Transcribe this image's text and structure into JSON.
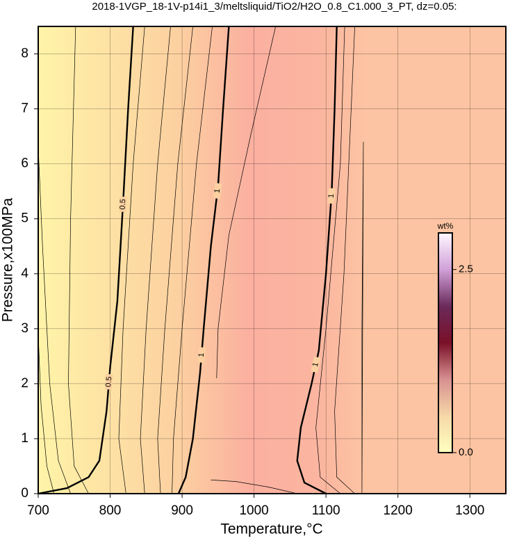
{
  "chart_data": {
    "type": "contour",
    "title": "2018-1VGP_18-1V-p14i1_3/meltsliquid/TiO2/H2O_0.8_C1.000_3_PT, dz=0.05:",
    "x_label": "Temperature,°C",
    "y_label": "Pressure,x100MPa",
    "xlim": [
      700,
      1350
    ],
    "ylim": [
      0,
      8.5
    ],
    "xticks": [
      700,
      800,
      900,
      1000,
      1100,
      1200,
      1300
    ],
    "yticks": [
      0,
      1,
      2,
      3,
      4,
      5,
      6,
      7,
      8
    ],
    "grid": true,
    "contours": [
      {
        "level": 0.2,
        "bold": false,
        "x": [
          722,
          712,
          704,
          700
        ],
        "y": [
          0,
          0.5,
          1.6,
          2.9
        ]
      },
      {
        "level": 0.3,
        "bold": false,
        "x": [
          745,
          728,
          716,
          706,
          700
        ],
        "y": [
          0,
          0.6,
          2,
          4.5,
          6.3
        ]
      },
      {
        "level": 0.4,
        "bold": false,
        "x": [
          770,
          750,
          742,
          745,
          752
        ],
        "y": [
          0,
          0.5,
          2,
          5,
          8.5
        ]
      },
      {
        "level": 0.5,
        "bold": true,
        "x": [
          700,
          740,
          770,
          785,
          795,
          800,
          810,
          818,
          825,
          832
        ],
        "y": [
          0,
          0.1,
          0.3,
          0.6,
          1.5,
          2.3,
          3.5,
          5.3,
          7,
          8.5
        ]
      },
      {
        "level": 0.6,
        "bold": false,
        "x": [
          822,
          812,
          818,
          832,
          848
        ],
        "y": [
          0,
          1,
          3,
          6,
          8.5
        ]
      },
      {
        "level": 0.7,
        "bold": false,
        "x": [
          848,
          842,
          850,
          866,
          884
        ],
        "y": [
          0,
          1,
          3,
          6,
          8.5
        ]
      },
      {
        "level": 0.8,
        "bold": false,
        "x": [
          870,
          866,
          876,
          894,
          915
        ],
        "y": [
          0,
          1,
          3,
          6,
          8.5
        ]
      },
      {
        "level": 0.9,
        "bold": false,
        "x": [
          886,
          888,
          900,
          920,
          942
        ],
        "y": [
          0,
          1,
          3,
          6,
          8.5
        ]
      },
      {
        "level": 1,
        "bold": true,
        "x": [
          895,
          905,
          915,
          925,
          930,
          940,
          950,
          957,
          965
        ],
        "y": [
          0,
          0.3,
          1,
          2.2,
          3,
          4.5,
          5.6,
          7,
          8.5
        ]
      },
      {
        "level": 1.05,
        "bold": false,
        "x": [
          940,
          975,
          1020,
          1060
        ],
        "y": [
          0.25,
          0.22,
          0.12,
          0
        ]
      },
      {
        "level": 1.1,
        "bold": false,
        "x": [
          948,
          950,
          965,
          995,
          1030
        ],
        "y": [
          2.1,
          3,
          4.7,
          6.5,
          8.5
        ]
      },
      {
        "level": 1,
        "bold": true,
        "x": [
          1100,
          1070,
          1060,
          1065,
          1080,
          1090,
          1100,
          1108,
          1112,
          1115
        ],
        "y": [
          0,
          0.2,
          0.6,
          1.2,
          2,
          2.6,
          4,
          5.5,
          7,
          8.5
        ]
      },
      {
        "level": 0.95,
        "bold": false,
        "x": [
          1120,
          1092,
          1086,
          1100,
          1120,
          1126
        ],
        "y": [
          0,
          0.3,
          1.2,
          3,
          6,
          8.5
        ]
      },
      {
        "level": 0.9,
        "bold": false,
        "x": [
          1140,
          1115,
          1112,
          1125,
          1140
        ],
        "y": [
          0,
          0.3,
          1.5,
          4,
          8.5
        ]
      },
      {
        "level": 0.85,
        "bold": false,
        "x": [
          1150,
          1150,
          1152,
          1150
        ],
        "y": [
          0,
          3,
          6.4,
          0
        ]
      }
    ],
    "colorbar": {
      "label": "wt%",
      "lim": [
        0,
        3
      ],
      "ticks": [
        {
          "value": 0,
          "label": "0.0"
        },
        2.5
      ],
      "colormap": [
        "#ffffc0",
        "#f6d8a8",
        "#d79090",
        "#7a1028",
        "#6a2a5a",
        "#d0a0d8",
        "#fff8ff"
      ]
    }
  }
}
